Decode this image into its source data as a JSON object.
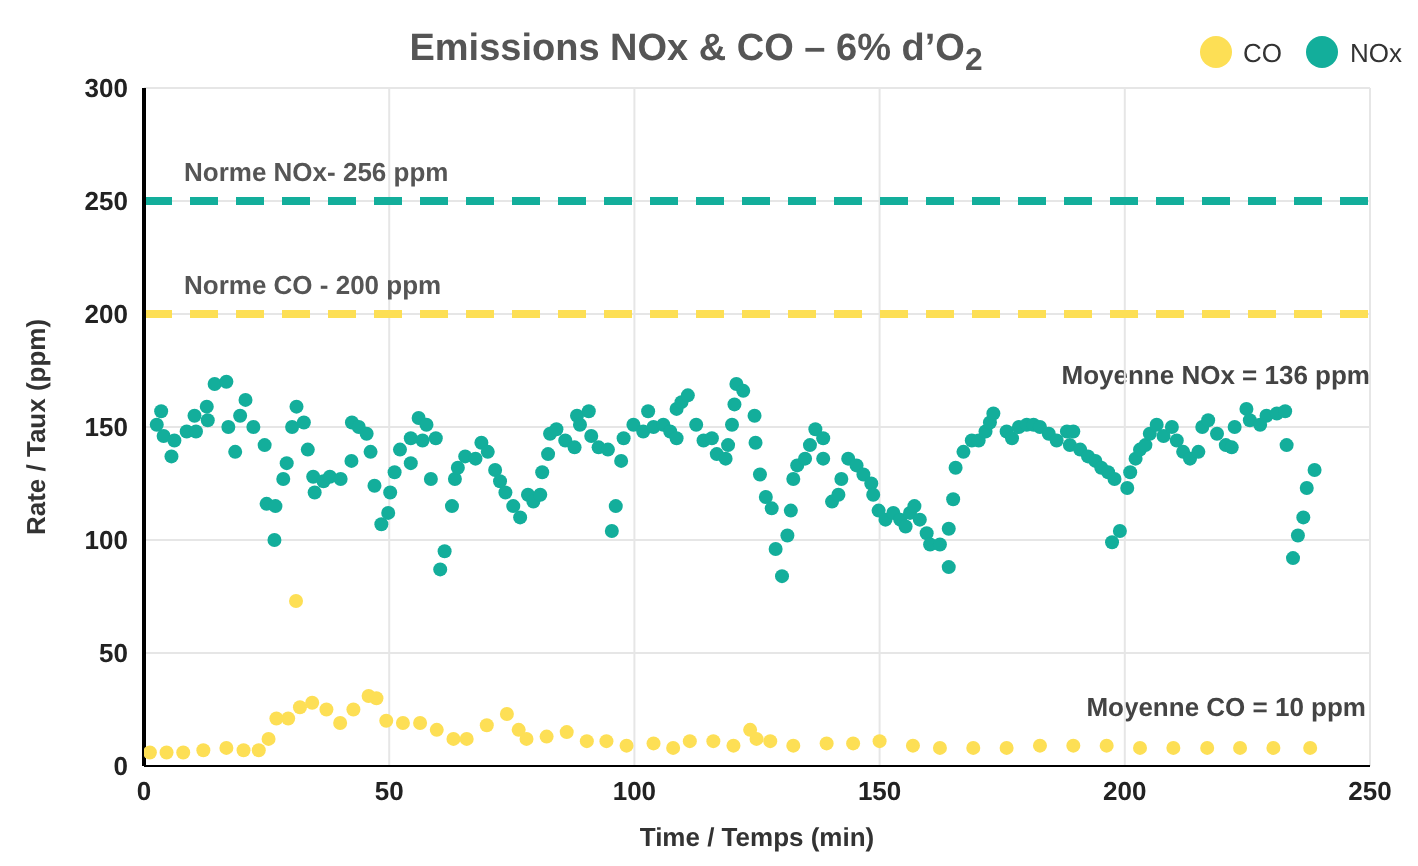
{
  "chart_data": {
    "type": "scatter",
    "title": "Emissions NOx & CO – 6% d’O$_{2}$",
    "xlabel": "Time / Temps (min)",
    "ylabel": "Rate / Taux (ppm)",
    "xlim": [
      0,
      250
    ],
    "xticks": [
      0,
      50,
      100,
      150,
      200,
      250
    ],
    "ylim": [
      0,
      300
    ],
    "yticks": [
      0,
      50,
      100,
      150,
      200,
      250,
      300
    ],
    "grid": true,
    "legend": "top right",
    "marker": "circle",
    "ref_lines": [
      {
        "axis": "y",
        "value": 250,
        "label": "Norme NOx- 256 ppm",
        "color": "#13ae9b",
        "line_style": "dashed"
      },
      {
        "axis": "y",
        "value": 200,
        "label": "Norme CO - 200 ppm",
        "color": "#fddf55",
        "line_style": "dashed"
      }
    ],
    "annotations": [
      "Moyenne NOx = 136 ppm",
      "Moyenne CO = 10 ppm"
    ],
    "series": [
      {
        "name": "CO",
        "color": "#fddf55",
        "x": [
          1.2,
          4.6,
          8,
          12.1,
          16.8,
          20.3,
          23.4,
          25.4,
          27,
          29.4,
          31,
          31.8,
          34.3,
          37.2,
          40,
          42.7,
          45.8,
          47.4,
          49.4,
          52.8,
          56.3,
          59.7,
          63.1,
          65.8,
          69.9,
          74,
          76.4,
          78,
          82.1,
          86.2,
          90.3,
          94.3,
          98.4,
          103.9,
          107.9,
          111.3,
          116.1,
          120.2,
          123.6,
          124.9,
          127.7,
          132.4,
          139.2,
          144.6,
          150,
          156.8,
          162.3,
          169.1,
          175.9,
          182.7,
          189.5,
          196.3,
          203.1,
          209.9,
          216.8,
          223.5,
          230.3,
          237.8
        ],
        "values": [
          6,
          6,
          6,
          7,
          8,
          7,
          7,
          12,
          21,
          21,
          73,
          26,
          28,
          25,
          19,
          25,
          31,
          30,
          20,
          19,
          19,
          16,
          12,
          12,
          18,
          23,
          16,
          12,
          13,
          15,
          11,
          11,
          9,
          10,
          8,
          11,
          11,
          9,
          16,
          12,
          11,
          9,
          10,
          10,
          11,
          9,
          8,
          8,
          8,
          9,
          9,
          9,
          8,
          8,
          8,
          8,
          8,
          8
        ]
      },
      {
        "name": "NOx",
        "color": "#13ae9b",
        "x": [
          2.6,
          3.5,
          4,
          5.6,
          6.2,
          8.7,
          10.3,
          10.6,
          12.8,
          13,
          14.4,
          16.8,
          17.2,
          18.6,
          19.6,
          20.7,
          22.3,
          24.6,
          25,
          26.6,
          26.8,
          28.4,
          29.1,
          30.2,
          31.1,
          32.6,
          33.4,
          34.5,
          34.8,
          36.6,
          37.9,
          40.1,
          42.3,
          42.4,
          43.8,
          45.4,
          46.2,
          47,
          48.4,
          49.8,
          50.2,
          51.1,
          52.2,
          54.4,
          54.4,
          56,
          56.8,
          57.6,
          58.5,
          59.5,
          60.4,
          61.3,
          62.8,
          63.4,
          64,
          65.5,
          67.6,
          68.8,
          70.1,
          71.6,
          72.6,
          73.7,
          75.3,
          76.7,
          78.3,
          79.4,
          80.8,
          81.2,
          82.4,
          82.8,
          84.1,
          85.9,
          87.8,
          88.3,
          88.9,
          90.7,
          91.2,
          92.7,
          94.6,
          95.4,
          96.2,
          97.3,
          97.8,
          99.8,
          101.8,
          102.8,
          103.9,
          105.9,
          107.3,
          108.6,
          108.6,
          109.6,
          110.9,
          112.6,
          114.1,
          115.8,
          116.8,
          118.6,
          119.1,
          119.9,
          120.4,
          120.8,
          122.2,
          124.5,
          124.7,
          125.6,
          126.8,
          128,
          128.8,
          130.1,
          131.2,
          131.9,
          132.4,
          133.2,
          134.8,
          135.8,
          136.9,
          138.5,
          138.5,
          140.3,
          141.6,
          142.2,
          143.6,
          145.3,
          146.7,
          148.3,
          148.7,
          149.8,
          151.2,
          152.8,
          154.2,
          155.3,
          156.2,
          157.1,
          158.2,
          159.6,
          160.3,
          162.3,
          164.1,
          164.1,
          165,
          165.5,
          167.1,
          168.8,
          170.2,
          171.6,
          172.5,
          173.2,
          175.9,
          177,
          178.4,
          180,
          181.4,
          182.7,
          184.5,
          186.1,
          188.2,
          188.8,
          189.5,
          190.9,
          192.5,
          194,
          195.2,
          196.6,
          197.4,
          197.9,
          199,
          200.5,
          201.1,
          202.2,
          203.1,
          204.2,
          205.1,
          206.5,
          207.9,
          209.6,
          210.6,
          211.9,
          213.3,
          215,
          215.8,
          217,
          218.8,
          220.6,
          221.8,
          222.4,
          224.8,
          225.5,
          227.6,
          228.9,
          231,
          232.7,
          233,
          234.3,
          235.3,
          236.4,
          237.1,
          238.7
        ],
        "values": [
          151,
          157,
          146,
          137,
          144,
          148,
          155,
          148,
          159,
          153,
          169,
          170,
          150,
          139,
          155,
          162,
          150,
          142,
          116,
          100,
          115,
          127,
          134,
          150,
          159,
          152,
          140,
          128,
          121,
          126,
          128,
          127,
          135,
          152,
          150,
          147,
          139,
          124,
          107,
          112,
          121,
          130,
          140,
          145,
          134,
          154,
          144,
          151,
          127,
          145,
          87,
          95,
          115,
          127,
          132,
          137,
          136,
          143,
          139,
          131,
          126,
          121,
          115,
          110,
          120,
          117,
          120,
          130,
          138,
          147,
          149,
          144,
          141,
          155,
          151,
          157,
          146,
          141,
          140,
          104,
          115,
          135,
          145,
          151,
          148,
          157,
          150,
          151,
          148,
          145,
          158,
          161,
          164,
          151,
          144,
          145,
          138,
          136,
          142,
          151,
          160,
          169,
          166,
          155,
          143,
          129,
          119,
          114,
          96,
          84,
          102,
          113,
          127,
          133,
          136,
          142,
          149,
          145,
          136,
          117,
          120,
          127,
          136,
          133,
          129,
          125,
          120,
          113,
          109,
          112,
          109,
          106,
          112,
          115,
          109,
          103,
          98,
          98,
          105,
          88,
          118,
          132,
          139,
          144,
          144,
          148,
          152,
          156,
          148,
          145,
          150,
          151,
          151,
          150,
          147,
          144,
          148,
          142,
          148,
          140,
          137,
          135,
          132,
          130,
          99,
          127,
          104,
          123,
          130,
          136,
          140,
          142,
          147,
          151,
          146,
          150,
          144,
          139,
          136,
          139,
          150,
          153,
          147,
          142,
          141,
          150,
          158,
          153,
          151,
          155,
          156,
          157,
          142,
          92,
          102,
          110,
          123,
          131
        ]
      }
    ]
  }
}
